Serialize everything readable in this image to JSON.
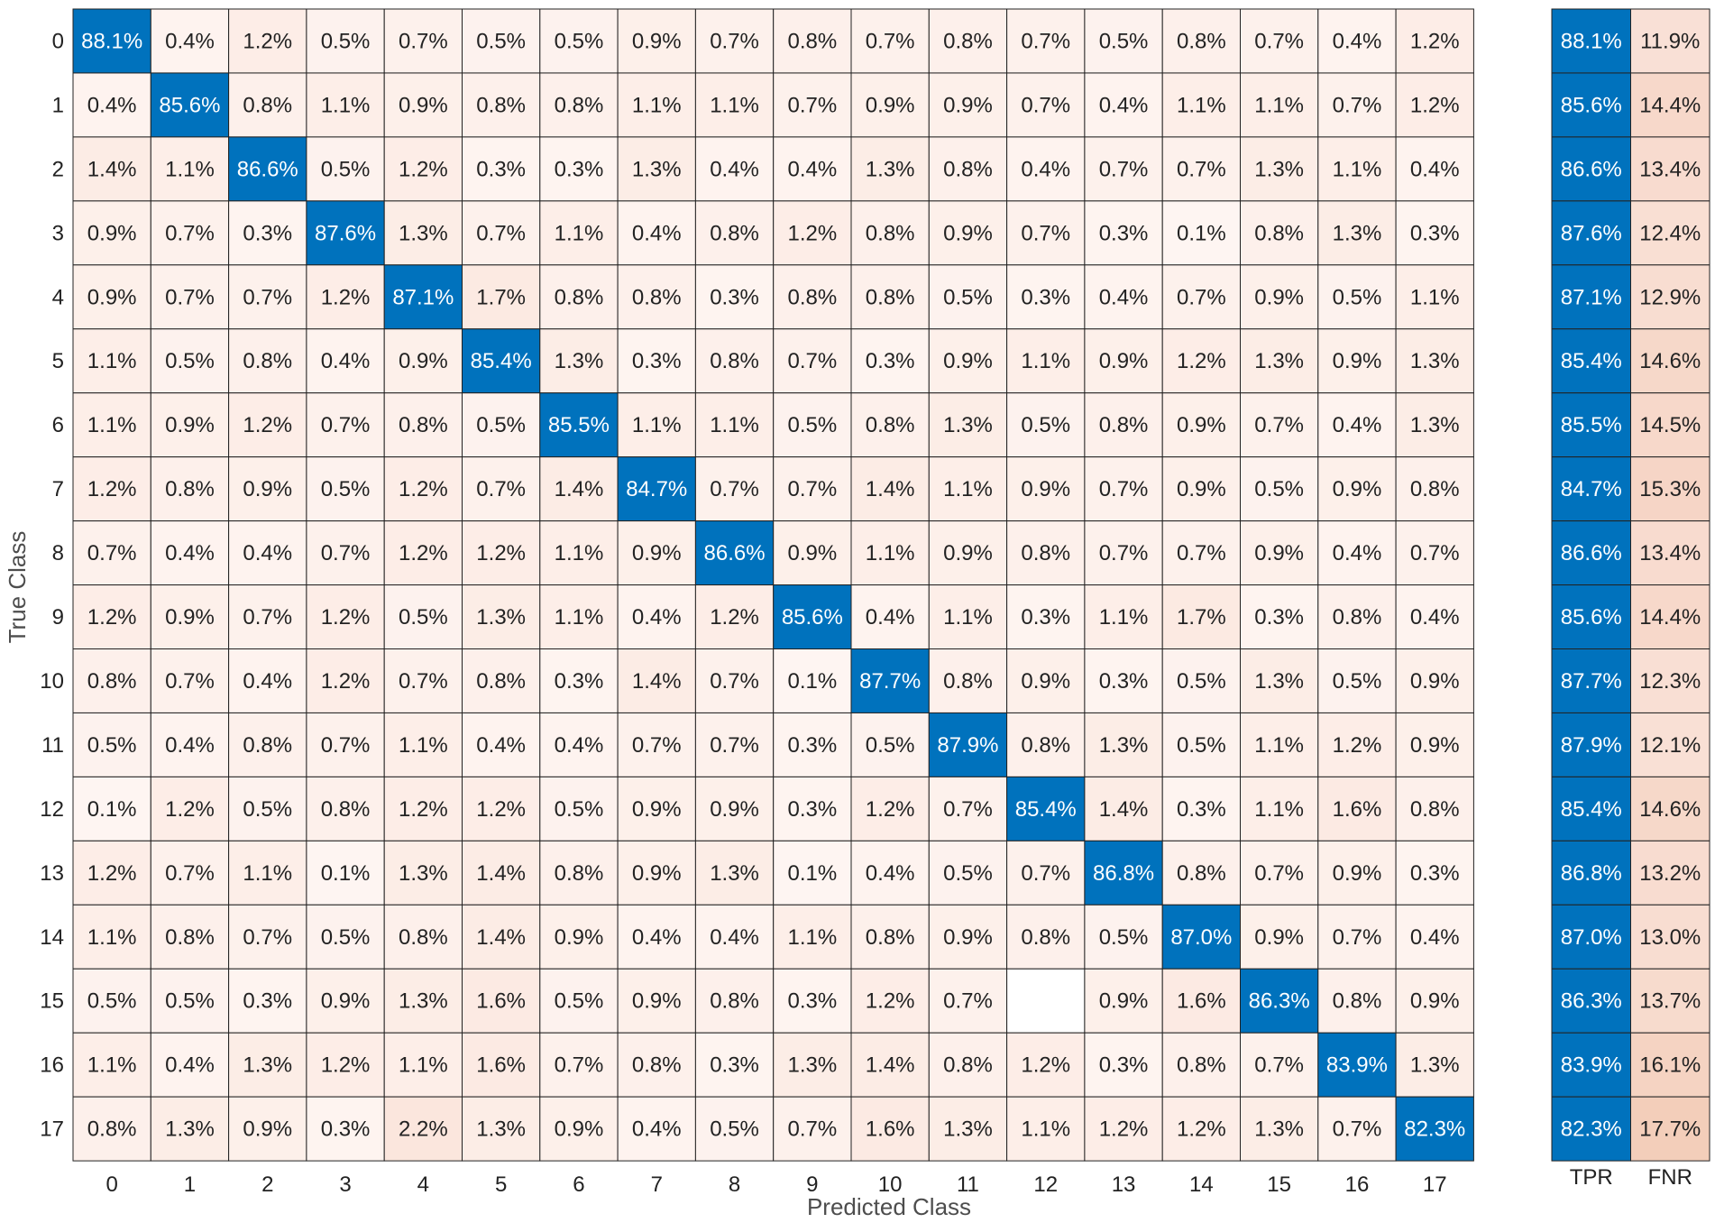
{
  "chart_data": {
    "type": "heatmap",
    "xlabel": "Predicted Class",
    "ylabel": "True Class",
    "rows": [
      "0",
      "1",
      "2",
      "3",
      "4",
      "5",
      "6",
      "7",
      "8",
      "9",
      "10",
      "11",
      "12",
      "13",
      "14",
      "15",
      "16",
      "17"
    ],
    "cols": [
      "0",
      "1",
      "2",
      "3",
      "4",
      "5",
      "6",
      "7",
      "8",
      "9",
      "10",
      "11",
      "12",
      "13",
      "14",
      "15",
      "16",
      "17"
    ],
    "matrix": [
      [
        "88.1%",
        "0.4%",
        "1.2%",
        "0.5%",
        "0.7%",
        "0.5%",
        "0.5%",
        "0.9%",
        "0.7%",
        "0.8%",
        "0.7%",
        "0.8%",
        "0.7%",
        "0.5%",
        "0.8%",
        "0.7%",
        "0.4%",
        "1.2%"
      ],
      [
        "0.4%",
        "85.6%",
        "0.8%",
        "1.1%",
        "0.9%",
        "0.8%",
        "0.8%",
        "1.1%",
        "1.1%",
        "0.7%",
        "0.9%",
        "0.9%",
        "0.7%",
        "0.4%",
        "1.1%",
        "1.1%",
        "0.7%",
        "1.2%"
      ],
      [
        "1.4%",
        "1.1%",
        "86.6%",
        "0.5%",
        "1.2%",
        "0.3%",
        "0.3%",
        "1.3%",
        "0.4%",
        "0.4%",
        "1.3%",
        "0.8%",
        "0.4%",
        "0.7%",
        "0.7%",
        "1.3%",
        "1.1%",
        "0.4%"
      ],
      [
        "0.9%",
        "0.7%",
        "0.3%",
        "87.6%",
        "1.3%",
        "0.7%",
        "1.1%",
        "0.4%",
        "0.8%",
        "1.2%",
        "0.8%",
        "0.9%",
        "0.7%",
        "0.3%",
        "0.1%",
        "0.8%",
        "1.3%",
        "0.3%"
      ],
      [
        "0.9%",
        "0.7%",
        "0.7%",
        "1.2%",
        "87.1%",
        "1.7%",
        "0.8%",
        "0.8%",
        "0.3%",
        "0.8%",
        "0.8%",
        "0.5%",
        "0.3%",
        "0.4%",
        "0.7%",
        "0.9%",
        "0.5%",
        "1.1%"
      ],
      [
        "1.1%",
        "0.5%",
        "0.8%",
        "0.4%",
        "0.9%",
        "85.4%",
        "1.3%",
        "0.3%",
        "0.8%",
        "0.7%",
        "0.3%",
        "0.9%",
        "1.1%",
        "0.9%",
        "1.2%",
        "1.3%",
        "0.9%",
        "1.3%"
      ],
      [
        "1.1%",
        "0.9%",
        "1.2%",
        "0.7%",
        "0.8%",
        "0.5%",
        "85.5%",
        "1.1%",
        "1.1%",
        "0.5%",
        "0.8%",
        "1.3%",
        "0.5%",
        "0.8%",
        "0.9%",
        "0.7%",
        "0.4%",
        "1.3%"
      ],
      [
        "1.2%",
        "0.8%",
        "0.9%",
        "0.5%",
        "1.2%",
        "0.7%",
        "1.4%",
        "84.7%",
        "0.7%",
        "0.7%",
        "1.4%",
        "1.1%",
        "0.9%",
        "0.7%",
        "0.9%",
        "0.5%",
        "0.9%",
        "0.8%"
      ],
      [
        "0.7%",
        "0.4%",
        "0.4%",
        "0.7%",
        "1.2%",
        "1.2%",
        "1.1%",
        "0.9%",
        "86.6%",
        "0.9%",
        "1.1%",
        "0.9%",
        "0.8%",
        "0.7%",
        "0.7%",
        "0.9%",
        "0.4%",
        "0.7%"
      ],
      [
        "1.2%",
        "0.9%",
        "0.7%",
        "1.2%",
        "0.5%",
        "1.3%",
        "1.1%",
        "0.4%",
        "1.2%",
        "85.6%",
        "0.4%",
        "1.1%",
        "0.3%",
        "1.1%",
        "1.7%",
        "0.3%",
        "0.8%",
        "0.4%"
      ],
      [
        "0.8%",
        "0.7%",
        "0.4%",
        "1.2%",
        "0.7%",
        "0.8%",
        "0.3%",
        "1.4%",
        "0.7%",
        "0.1%",
        "87.7%",
        "0.8%",
        "0.9%",
        "0.3%",
        "0.5%",
        "1.3%",
        "0.5%",
        "0.9%"
      ],
      [
        "0.5%",
        "0.4%",
        "0.8%",
        "0.7%",
        "1.1%",
        "0.4%",
        "0.4%",
        "0.7%",
        "0.7%",
        "0.3%",
        "0.5%",
        "87.9%",
        "0.8%",
        "1.3%",
        "0.5%",
        "1.1%",
        "1.2%",
        "0.9%"
      ],
      [
        "0.1%",
        "1.2%",
        "0.5%",
        "0.8%",
        "1.2%",
        "1.2%",
        "0.5%",
        "0.9%",
        "0.9%",
        "0.3%",
        "1.2%",
        "0.7%",
        "85.4%",
        "1.4%",
        "0.3%",
        "1.1%",
        "1.6%",
        "0.8%"
      ],
      [
        "1.2%",
        "0.7%",
        "1.1%",
        "0.1%",
        "1.3%",
        "1.4%",
        "0.8%",
        "0.9%",
        "1.3%",
        "0.1%",
        "0.4%",
        "0.5%",
        "0.7%",
        "86.8%",
        "0.8%",
        "0.7%",
        "0.9%",
        "0.3%"
      ],
      [
        "1.1%",
        "0.8%",
        "0.7%",
        "0.5%",
        "0.8%",
        "1.4%",
        "0.9%",
        "0.4%",
        "0.4%",
        "1.1%",
        "0.8%",
        "0.9%",
        "0.8%",
        "0.5%",
        "87.0%",
        "0.9%",
        "0.7%",
        "0.4%"
      ],
      [
        "0.5%",
        "0.5%",
        "0.3%",
        "0.9%",
        "1.3%",
        "1.6%",
        "0.5%",
        "0.9%",
        "0.8%",
        "0.3%",
        "1.2%",
        "0.7%",
        "",
        "0.9%",
        "1.6%",
        "86.3%",
        "0.8%",
        "0.9%"
      ],
      [
        "1.1%",
        "0.4%",
        "1.3%",
        "1.2%",
        "1.1%",
        "1.6%",
        "0.7%",
        "0.8%",
        "0.3%",
        "1.3%",
        "1.4%",
        "0.8%",
        "1.2%",
        "0.3%",
        "0.8%",
        "0.7%",
        "83.9%",
        "1.3%"
      ],
      [
        "0.8%",
        "1.3%",
        "0.9%",
        "0.3%",
        "2.2%",
        "1.3%",
        "0.9%",
        "0.4%",
        "0.5%",
        "0.7%",
        "1.6%",
        "1.3%",
        "1.1%",
        "1.2%",
        "1.2%",
        "1.3%",
        "0.7%",
        "82.3%"
      ]
    ],
    "summary": {
      "columns": [
        "TPR",
        "FNR"
      ],
      "tpr": [
        "88.1%",
        "85.6%",
        "86.6%",
        "87.6%",
        "87.1%",
        "85.4%",
        "85.5%",
        "84.7%",
        "86.6%",
        "85.6%",
        "87.7%",
        "87.9%",
        "85.4%",
        "86.8%",
        "87.0%",
        "86.3%",
        "83.9%",
        "82.3%"
      ],
      "fnr": [
        "11.9%",
        "14.4%",
        "13.4%",
        "12.4%",
        "12.9%",
        "14.6%",
        "14.5%",
        "15.3%",
        "13.4%",
        "14.4%",
        "12.3%",
        "12.1%",
        "14.6%",
        "13.2%",
        "13.0%",
        "13.7%",
        "16.1%",
        "17.7%"
      ]
    },
    "colors": {
      "diagonal": "#0072bd",
      "off_diagonal_light": "#fef6f3",
      "off_diagonal_dark": "#fbe4da",
      "fnr_light": "#fae3da",
      "fnr_dark": "#f3cdb9",
      "grid": "#222222",
      "text_dark": "#222222",
      "text_light": "#ffffff"
    },
    "grid": true
  }
}
